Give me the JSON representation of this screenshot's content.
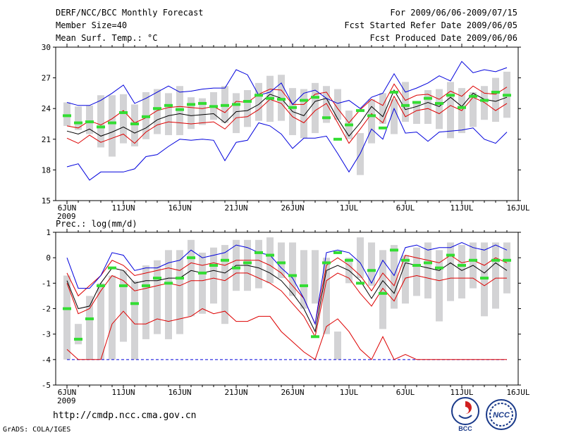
{
  "header": {
    "left_line1": "DERF/NCC/BCC Monthly Forecast",
    "left_line2": "Member Size=40",
    "left_line3": "Mean Surf. Temp.: °C",
    "right_line1": "For 2009/06/06-2009/07/15",
    "right_line2": "Fcst Started Refer Date 2009/06/05",
    "right_line3": "Fcst Produced Date 2009/06/06"
  },
  "footer": {
    "url": "http://cmdp.ncc.cma.gov.cn",
    "grads": "GrADS: COLA/IGES",
    "logo_bcc": "BCC",
    "logo_ncc": "NCC"
  },
  "colors": {
    "box": "#d3d3d5",
    "green": "#33dd33",
    "blue": "#0000dd",
    "red": "#dd0000",
    "black": "#000000"
  },
  "chart_data": [
    {
      "type": "line",
      "title": "Mean Surf. Temp.: °C",
      "ylim": [
        15,
        30
      ],
      "yticks": [
        "15",
        "18",
        "21",
        "24",
        "27",
        "30"
      ],
      "x_tick_labels": [
        "6JUN",
        "11JUN",
        "16JUN",
        "21JUN",
        "26JUN",
        "1JUL",
        "6JUL",
        "11JUL",
        "16JUL"
      ],
      "x_year_label": "2009",
      "days": [
        1,
        2,
        3,
        4,
        5,
        6,
        7,
        8,
        9,
        10,
        11,
        12,
        13,
        14,
        15,
        16,
        17,
        18,
        19,
        20,
        21,
        22,
        23,
        24,
        25,
        26,
        27,
        28,
        29,
        30,
        31,
        32,
        33,
        34,
        35,
        36,
        37,
        38,
        39,
        40
      ],
      "box_low": [
        22.3,
        21.9,
        21.5,
        20.2,
        19.3,
        20.6,
        20.3,
        21.0,
        21.5,
        21.4,
        21.4,
        22.0,
        22.4,
        22.9,
        22.6,
        21.6,
        22.2,
        22.8,
        22.7,
        22.8,
        21.4,
        21.1,
        21.6,
        22.6,
        22.9,
        21.0,
        17.5,
        20.6,
        22.5,
        21.5,
        22.7,
        22.5,
        22.5,
        22.0,
        21.1,
        21.6,
        22.2,
        22.9,
        22.7,
        23.1
      ],
      "box_high": [
        24.6,
        24.2,
        24.3,
        25.3,
        25.3,
        25.4,
        24.4,
        25.6,
        25.9,
        25.5,
        26.2,
        25.1,
        25.0,
        25.6,
        26.2,
        25.5,
        25.8,
        26.5,
        27.2,
        27.3,
        26.0,
        25.9,
        26.5,
        26.2,
        25.9,
        23.8,
        21.6,
        24.9,
        25.5,
        24.9,
        26.6,
        24.7,
        25.8,
        25.9,
        26.6,
        26.0,
        25.6,
        26.2,
        27.0,
        27.6
      ],
      "series": [
        {
          "name": "ensemble mean",
          "color": "black",
          "values": [
            21.8,
            21.5,
            22.0,
            21.3,
            21.7,
            22.2,
            21.6,
            22.1,
            22.9,
            23.3,
            23.5,
            23.3,
            23.4,
            23.5,
            22.6,
            23.7,
            23.8,
            24.4,
            25.4,
            25.0,
            23.7,
            23.3,
            24.7,
            25.0,
            23.0,
            21.3,
            22.6,
            24.2,
            23.2,
            25.8,
            23.9,
            24.2,
            24.6,
            24.2,
            25.1,
            24.2,
            25.5,
            24.9,
            24.7,
            25.1
          ]
        },
        {
          "name": "upper band",
          "color": "red",
          "values": [
            22.3,
            22.1,
            22.8,
            22.4,
            23.0,
            23.8,
            22.6,
            23.1,
            23.8,
            24.1,
            24.2,
            24.1,
            24.0,
            24.2,
            23.6,
            24.7,
            24.6,
            25.4,
            25.9,
            25.8,
            24.4,
            24.4,
            25.4,
            25.6,
            24.0,
            22.6,
            23.9,
            24.9,
            24.3,
            26.4,
            24.8,
            25.3,
            25.4,
            24.9,
            25.7,
            25.2,
            26.2,
            25.5,
            25.4,
            26.1
          ]
        },
        {
          "name": "lower band",
          "color": "red",
          "values": [
            21.1,
            20.6,
            21.4,
            20.7,
            21.1,
            21.5,
            20.6,
            21.7,
            22.4,
            22.7,
            22.6,
            22.5,
            22.6,
            22.7,
            22.0,
            23.1,
            23.2,
            23.9,
            24.9,
            24.5,
            23.2,
            22.6,
            23.8,
            24.5,
            22.6,
            20.6,
            22.0,
            23.5,
            22.6,
            25.2,
            23.2,
            23.8,
            24.0,
            23.5,
            24.3,
            23.8,
            25.1,
            24.6,
            23.8,
            24.5
          ]
        },
        {
          "name": "maximum",
          "color": "blue",
          "values": [
            24.6,
            24.3,
            24.3,
            24.8,
            25.5,
            26.3,
            24.5,
            25.0,
            25.6,
            26.2,
            25.6,
            25.7,
            25.9,
            26.0,
            26.0,
            27.8,
            27.3,
            25.3,
            25.6,
            26.5,
            24.4,
            25.5,
            25.8,
            25.0,
            24.5,
            24.8,
            24.0,
            25.1,
            25.5,
            27.4,
            25.6,
            26.0,
            26.5,
            27.2,
            26.7,
            28.6,
            27.5,
            27.8,
            27.6,
            28.0
          ]
        },
        {
          "name": "minimum",
          "color": "blue",
          "values": [
            18.3,
            18.6,
            17.0,
            17.8,
            17.8,
            17.8,
            18.1,
            19.3,
            19.5,
            20.3,
            21.0,
            20.9,
            21.0,
            20.9,
            18.9,
            20.7,
            20.9,
            22.6,
            22.3,
            21.5,
            20.1,
            21.1,
            21.1,
            21.3,
            19.6,
            17.8,
            19.6,
            22.0,
            21.0,
            24.0,
            21.6,
            21.7,
            20.8,
            21.7,
            21.8,
            21.9,
            22.1,
            21.0,
            20.6,
            21.7
          ]
        },
        {
          "name": "markers",
          "color": "green",
          "values": [
            23.3,
            22.6,
            22.7,
            22.2,
            22.6,
            23.6,
            22.5,
            23.2,
            24.0,
            24.3,
            23.9,
            24.4,
            24.5,
            24.2,
            24.3,
            24.4,
            24.7,
            25.3,
            25.0,
            24.9,
            24.1,
            24.8,
            25.1,
            23.1,
            21.0,
            22.4,
            23.8,
            23.3,
            22.1,
            25.6,
            24.3,
            24.6,
            25.0,
            24.5,
            25.3,
            24.1,
            25.2,
            24.8,
            25.6,
            25.3
          ]
        }
      ]
    },
    {
      "type": "line",
      "title": "Prec.: log(mm/d)",
      "ylim": [
        -5,
        1
      ],
      "yticks": [
        "-5",
        "-4",
        "-3",
        "-2",
        "-1",
        "0",
        "1"
      ],
      "x_tick_labels": [
        "6JUN",
        "11JUN",
        "16JUN",
        "21JUN",
        "26JUN",
        "1JUL",
        "6JUL",
        "11JUL",
        "16JUL"
      ],
      "x_year_label": "2009",
      "days": [
        1,
        2,
        3,
        4,
        5,
        6,
        7,
        8,
        9,
        10,
        11,
        12,
        13,
        14,
        15,
        16,
        17,
        18,
        19,
        20,
        21,
        22,
        23,
        24,
        25,
        26,
        27,
        28,
        29,
        30,
        31,
        32,
        33,
        34,
        35,
        36,
        37,
        38,
        39,
        40
      ],
      "box_low": [
        -4.0,
        -3.4,
        -4.0,
        -4.0,
        -4.0,
        -3.3,
        -4.0,
        -3.2,
        -3.0,
        -3.2,
        -3.0,
        -2.3,
        -2.2,
        -1.8,
        -2.6,
        -1.3,
        -1.3,
        -1.2,
        -1.0,
        -0.8,
        -1.5,
        -2.0,
        -1.8,
        -3.0,
        -4.0,
        -1.0,
        -0.8,
        -1.1,
        -2.8,
        -2.0,
        -1.8,
        -1.5,
        -1.6,
        -2.5,
        -1.7,
        -1.6,
        -1.2,
        -2.3,
        -2.0,
        -1.4
      ],
      "box_high": [
        -0.7,
        -2.6,
        -1.5,
        -1.0,
        -0.7,
        -0.5,
        -0.9,
        -0.3,
        -0.1,
        0.3,
        0.3,
        0.7,
        0.2,
        0.4,
        0.5,
        0.7,
        0.7,
        0.7,
        0.8,
        0.6,
        0.6,
        0.3,
        0.3,
        0.0,
        -2.9,
        0.0,
        0.8,
        0.6,
        0.3,
        0.5,
        0.1,
        0.4,
        0.6,
        0.3,
        0.6,
        0.5,
        0.6,
        0.6,
        0.6,
        0.6
      ],
      "series": [
        {
          "name": "ensemble mean",
          "color": "black",
          "values": [
            -0.9,
            -2.0,
            -1.9,
            -1.0,
            -0.4,
            -0.5,
            -1.0,
            -0.9,
            -0.9,
            -0.8,
            -0.8,
            -0.5,
            -0.6,
            -0.5,
            -0.6,
            -0.3,
            -0.3,
            -0.4,
            -0.6,
            -0.9,
            -1.4,
            -2.0,
            -2.9,
            -0.5,
            -0.3,
            -0.5,
            -0.9,
            -1.6,
            -0.9,
            -1.4,
            -0.2,
            -0.3,
            -0.4,
            -0.5,
            -0.2,
            -0.5,
            -0.3,
            -0.6,
            -0.2,
            -0.5
          ]
        },
        {
          "name": "upper band",
          "color": "red",
          "values": [
            -0.6,
            -1.5,
            -1.1,
            -0.7,
            -0.1,
            -0.3,
            -0.7,
            -0.6,
            -0.5,
            -0.4,
            -0.5,
            -0.2,
            -0.3,
            -0.2,
            -0.3,
            -0.1,
            -0.1,
            -0.1,
            -0.3,
            -0.6,
            -1.1,
            -1.6,
            -2.6,
            -0.3,
            0.0,
            -0.3,
            -0.7,
            -1.3,
            -0.6,
            -1.1,
            0.1,
            0.0,
            -0.1,
            -0.2,
            0.1,
            -0.2,
            -0.1,
            -0.3,
            0.0,
            -0.2
          ]
        },
        {
          "name": "lower band",
          "color": "red",
          "values": [
            -1.0,
            -2.2,
            -2.0,
            -1.3,
            -0.7,
            -0.9,
            -1.3,
            -1.2,
            -1.1,
            -1.0,
            -1.1,
            -0.9,
            -0.9,
            -0.8,
            -0.9,
            -0.6,
            -0.6,
            -0.8,
            -1.0,
            -1.3,
            -1.8,
            -2.3,
            -3.1,
            -0.9,
            -0.6,
            -0.8,
            -1.4,
            -1.9,
            -1.2,
            -1.7,
            -0.8,
            -0.7,
            -0.8,
            -0.9,
            -0.8,
            -0.8,
            -0.8,
            -1.1,
            -0.8,
            -0.8
          ]
        },
        {
          "name": "maximum",
          "color": "blue",
          "values": [
            0.0,
            -1.2,
            -1.2,
            -0.7,
            0.2,
            0.1,
            -0.5,
            -0.4,
            -0.4,
            -0.2,
            -0.1,
            0.3,
            0.0,
            0.1,
            0.2,
            0.5,
            0.4,
            0.2,
            0.1,
            -0.4,
            -0.8,
            -1.6,
            -2.6,
            0.2,
            0.3,
            0.2,
            -0.2,
            -1.0,
            -0.1,
            -0.7,
            0.4,
            0.5,
            0.3,
            0.4,
            0.4,
            0.6,
            0.4,
            0.3,
            0.5,
            0.3
          ]
        },
        {
          "name": "minimum",
          "color": "blue",
          "values": [
            -4.0,
            -4.0,
            -4.0,
            -4.0,
            -4.0,
            -4.0,
            -4.0,
            -4.0,
            -4.0,
            -4.0,
            -4.0,
            -4.0,
            -4.0,
            -4.0,
            -4.0,
            -4.0,
            -4.0,
            -4.0,
            -4.0,
            -4.0,
            -4.0,
            -4.0,
            -4.0,
            -4.0,
            -4.0,
            -4.0,
            -4.0,
            -4.0,
            -4.0,
            -4.0,
            -4.0,
            -4.0,
            -4.0,
            -4.0,
            -4.0,
            -4.0,
            -4.0,
            -4.0,
            -4.0,
            -4.0
          ]
        },
        {
          "name": "lowest member",
          "color": "red",
          "values": [
            -3.6,
            -4.0,
            -4.0,
            -4.0,
            -2.6,
            -2.1,
            -2.6,
            -2.6,
            -2.4,
            -2.5,
            -2.4,
            -2.3,
            -2.0,
            -2.2,
            -2.1,
            -2.5,
            -2.5,
            -2.3,
            -2.3,
            -2.9,
            -3.3,
            -3.7,
            -4.0,
            -2.7,
            -2.4,
            -2.9,
            -3.6,
            -4.0,
            -3.1,
            -4.0,
            -3.8,
            -4.0,
            -4.0,
            -4.0,
            -4.0,
            -4.0,
            -4.0,
            -4.0,
            -4.0,
            -4.0
          ]
        },
        {
          "name": "markers",
          "color": "green",
          "values": [
            -2.0,
            -3.2,
            -2.4,
            -1.1,
            -0.4,
            -1.1,
            -1.8,
            -1.1,
            -0.8,
            -1.0,
            -0.8,
            0.0,
            -0.6,
            -0.3,
            -0.1,
            -0.4,
            -0.2,
            0.2,
            0.1,
            -0.2,
            -0.7,
            -1.1,
            -3.1,
            -0.2,
            0.2,
            -0.1,
            -1.0,
            -0.5,
            -1.4,
            0.3,
            -0.1,
            -0.3,
            -0.2,
            -0.4,
            0.1,
            -0.3,
            -0.1,
            -0.8,
            -0.1,
            -0.1
          ]
        }
      ]
    }
  ]
}
